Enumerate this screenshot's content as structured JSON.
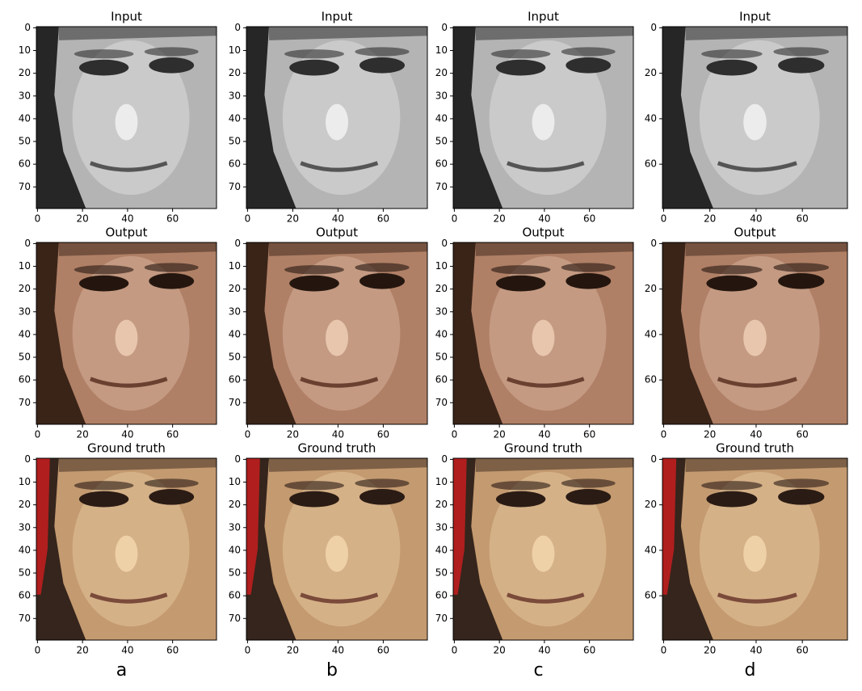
{
  "figure": {
    "column_labels": [
      "a",
      "b",
      "c",
      "d"
    ],
    "columns": [
      [
        {
          "title": "Input",
          "xlim": [
            -0.5,
            79.5
          ],
          "ylim": [
            79.5,
            -0.5
          ],
          "xticks": [
            0,
            20,
            40,
            60
          ],
          "yticks": [
            0,
            10,
            20,
            30,
            40,
            50,
            60,
            70
          ]
        },
        {
          "title": "Output",
          "xlim": [
            -0.5,
            79.5
          ],
          "ylim": [
            79.5,
            -0.5
          ],
          "xticks": [
            0,
            20,
            40,
            60
          ],
          "yticks": [
            0,
            10,
            20,
            30,
            40,
            50,
            60,
            70
          ]
        },
        {
          "title": "Ground truth",
          "xlim": [
            -0.5,
            79.5
          ],
          "ylim": [
            79.5,
            -0.5
          ],
          "xticks": [
            0,
            20,
            40,
            60
          ],
          "yticks": [
            0,
            10,
            20,
            30,
            40,
            50,
            60,
            70
          ]
        }
      ],
      [
        {
          "title": "Input",
          "xlim": [
            -0.5,
            79.5
          ],
          "ylim": [
            79.5,
            -0.5
          ],
          "xticks": [
            0,
            20,
            40,
            60
          ],
          "yticks": [
            0,
            10,
            20,
            30,
            40,
            50,
            60,
            70
          ]
        },
        {
          "title": "Output",
          "xlim": [
            -0.5,
            79.5
          ],
          "ylim": [
            79.5,
            -0.5
          ],
          "xticks": [
            0,
            20,
            40,
            60
          ],
          "yticks": [
            0,
            10,
            20,
            30,
            40,
            50,
            60,
            70
          ]
        },
        {
          "title": "Ground truth",
          "xlim": [
            -0.5,
            79.5
          ],
          "ylim": [
            79.5,
            -0.5
          ],
          "xticks": [
            0,
            20,
            40,
            60
          ],
          "yticks": [
            0,
            10,
            20,
            30,
            40,
            50,
            60,
            70
          ]
        }
      ],
      [
        {
          "title": "Input",
          "xlim": [
            -0.5,
            79.5
          ],
          "ylim": [
            79.5,
            -0.5
          ],
          "xticks": [
            0,
            20,
            40,
            60
          ],
          "yticks": [
            0,
            10,
            20,
            30,
            40,
            50,
            60,
            70
          ]
        },
        {
          "title": "Output",
          "xlim": [
            -0.5,
            79.5
          ],
          "ylim": [
            79.5,
            -0.5
          ],
          "xticks": [
            0,
            20,
            40,
            60
          ],
          "yticks": [
            0,
            10,
            20,
            30,
            40,
            50,
            60,
            70
          ]
        },
        {
          "title": "Ground truth",
          "xlim": [
            -0.5,
            79.5
          ],
          "ylim": [
            79.5,
            -0.5
          ],
          "xticks": [
            0,
            20,
            40,
            60
          ],
          "yticks": [
            0,
            10,
            20,
            30,
            40,
            50,
            60,
            70
          ]
        }
      ],
      [
        {
          "title": "Input",
          "xlim": [
            -0.5,
            79.5
          ],
          "ylim": [
            79.5,
            -0.5
          ],
          "xticks": [
            0,
            20,
            40,
            60
          ],
          "yticks": [
            0,
            20,
            40,
            60
          ]
        },
        {
          "title": "Output",
          "xlim": [
            -0.5,
            79.5
          ],
          "ylim": [
            79.5,
            -0.5
          ],
          "xticks": [
            0,
            20,
            40,
            60
          ],
          "yticks": [
            0,
            20,
            40,
            60
          ]
        },
        {
          "title": "Ground truth",
          "xlim": [
            -0.5,
            79.5
          ],
          "ylim": [
            79.5,
            -0.5
          ],
          "xticks": [
            0,
            20,
            40,
            60
          ],
          "yticks": [
            0,
            20,
            40,
            60
          ]
        }
      ]
    ]
  }
}
